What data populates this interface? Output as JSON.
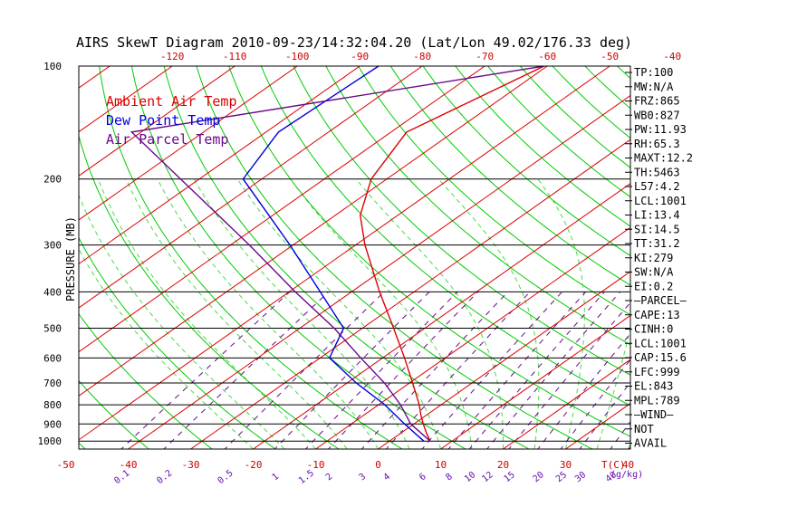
{
  "title": "AIRS SkewT Diagram 2010-09-23/14:32:04.20 (Lat/Lon 49.02/176.33 deg)",
  "colors": {
    "temperature": "#dd0000",
    "dewpoint": "#0000dd",
    "parcel": "#6a0a8a",
    "isotherm": "#dd0000",
    "dry_adiabat": "#00cc00",
    "moist_adiabat": "#44dd44",
    "mixing_ratio": "#6a0a8a",
    "isobar": "#000000"
  },
  "legend": [
    {
      "label": "Ambient Air Temp",
      "color": "#dd0000"
    },
    {
      "label": "Dew Point Temp",
      "color": "#0000dd"
    },
    {
      "label": "Air Parcel Temp",
      "color": "#6a0a8a"
    }
  ],
  "chart_data": {
    "type": "line",
    "title": "AIRS SkewT Diagram 2010-09-23/14:32:04.20 (Lat/Lon 49.02/176.33 deg)",
    "ylabel": "PRESSURE (MB)",
    "xlabel": "T(C)",
    "mixing_ratio_label": "(g/kg)",
    "y_scale": "log",
    "ylim": [
      1050,
      100
    ],
    "pressure_ticks": [
      100,
      200,
      300,
      400,
      500,
      600,
      700,
      800,
      900,
      1000
    ],
    "pressure_tick_labels": [
      "100",
      "200",
      "300",
      "400",
      "500",
      "600",
      "700",
      "800",
      "900",
      "1000"
    ],
    "top_temp_ticks": [
      -120,
      -110,
      -100,
      -90,
      -80,
      -70,
      -60,
      -50,
      -40
    ],
    "top_temp_tick_labels": [
      "-120",
      "-110",
      "-100",
      "-90",
      "-80",
      "-70",
      "-60",
      "-50",
      "-40"
    ],
    "bottom_temp_ticks": [
      -50,
      -40,
      -30,
      -20,
      -10,
      0,
      10,
      20,
      30,
      40
    ],
    "bottom_temp_tick_labels": [
      "-50",
      "-40",
      "-30",
      "-20",
      "-10",
      "0",
      "10",
      "20",
      "30",
      "40"
    ],
    "mixing_ratio_ticks": [
      0.1,
      0.2,
      0.5,
      1,
      1.5,
      2,
      3,
      4,
      6,
      8,
      10,
      12,
      15,
      20,
      25,
      30,
      40
    ],
    "mixing_ratio_tick_labels": [
      "0.1",
      "0.2",
      "0.5",
      "1",
      "1.5",
      "2",
      "3",
      "4",
      "6",
      "8",
      "10",
      "12",
      "15",
      "20",
      "25",
      "30",
      "40"
    ],
    "series": [
      {
        "name": "Ambient Air Temp",
        "points": [
          {
            "p": 1000,
            "t": 6.5
          },
          {
            "p": 950,
            "t": 4.0
          },
          {
            "p": 900,
            "t": 1.5
          },
          {
            "p": 850,
            "t": -1.0
          },
          {
            "p": 800,
            "t": -3.5
          },
          {
            "p": 700,
            "t": -9.5
          },
          {
            "p": 600,
            "t": -16.5
          },
          {
            "p": 500,
            "t": -25.0
          },
          {
            "p": 400,
            "t": -35.5
          },
          {
            "p": 300,
            "t": -48.5
          },
          {
            "p": 250,
            "t": -56.0
          },
          {
            "p": 200,
            "t": -62.5
          },
          {
            "p": 150,
            "t": -67.5
          },
          {
            "p": 100,
            "t": -60.5
          }
        ]
      },
      {
        "name": "Dew Point Temp",
        "points": [
          {
            "p": 1000,
            "t": 5.5
          },
          {
            "p": 900,
            "t": -1.5
          },
          {
            "p": 800,
            "t": -9.0
          },
          {
            "p": 700,
            "t": -18.5
          },
          {
            "p": 600,
            "t": -28.5
          },
          {
            "p": 500,
            "t": -33.0
          },
          {
            "p": 400,
            "t": -45.0
          },
          {
            "p": 300,
            "t": -60.5
          },
          {
            "p": 200,
            "t": -83.0
          },
          {
            "p": 150,
            "t": -88.0
          },
          {
            "p": 100,
            "t": -87.0
          }
        ]
      },
      {
        "name": "Air Parcel Temp",
        "points": [
          {
            "p": 1000,
            "t": 6.5
          },
          {
            "p": 900,
            "t": -0.5
          },
          {
            "p": 800,
            "t": -6.5
          },
          {
            "p": 700,
            "t": -14.0
          },
          {
            "p": 600,
            "t": -23.5
          },
          {
            "p": 500,
            "t": -34.5
          },
          {
            "p": 400,
            "t": -49.0
          },
          {
            "p": 300,
            "t": -67.0
          },
          {
            "p": 200,
            "t": -93.0
          },
          {
            "p": 150,
            "t": -111.5
          },
          {
            "p": 100,
            "t": -60.5
          }
        ]
      }
    ]
  },
  "stats": [
    "TP:100",
    "MW:N/A",
    "FRZ:865",
    "WB0:827",
    "PW:11.93",
    "RH:65.3",
    "MAXT:12.2",
    "TH:5463",
    "L57:4.2",
    "LCL:1001",
    "LI:13.4",
    "SI:14.5",
    "TT:31.2",
    "KI:279",
    "SW:N/A",
    "EI:0.2",
    "—PARCEL—",
    "CAPE:13",
    "CINH:0",
    "LCL:1001",
    "CAP:15.6",
    "LFC:999",
    "EL:843",
    "MPL:789",
    "—WIND—",
    "NOT",
    "AVAIL"
  ]
}
